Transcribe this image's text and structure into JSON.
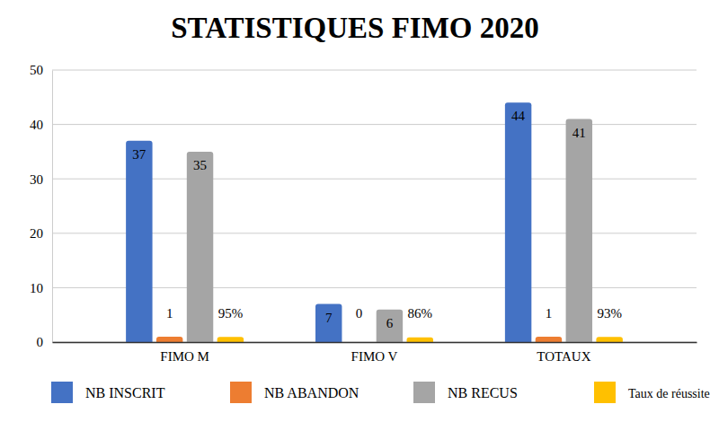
{
  "chart_data": {
    "type": "bar",
    "title": "STATISTIQUES FIMO 2020",
    "categories": [
      "FIMO M",
      "FIMO V",
      "TOTAUX"
    ],
    "series": [
      {
        "name": "NB INSCRIT",
        "color": "#4472c4",
        "values": [
          37,
          7,
          44
        ]
      },
      {
        "name": "NB ABANDON",
        "color": "#ed7d31",
        "values": [
          1,
          0,
          1
        ]
      },
      {
        "name": "NB RECUS",
        "color": "#a5a5a5",
        "values": [
          35,
          6,
          41
        ]
      },
      {
        "name": "Taux de réussite",
        "color": "#ffc000",
        "values": [
          0.95,
          0.86,
          0.93
        ],
        "value_labels": [
          "95%",
          "86%",
          "93%"
        ]
      }
    ],
    "ylim": [
      0,
      50
    ],
    "yticks": [
      0,
      10,
      20,
      30,
      40,
      50
    ],
    "grid": true,
    "data_labels": true,
    "legend": "bottom"
  }
}
